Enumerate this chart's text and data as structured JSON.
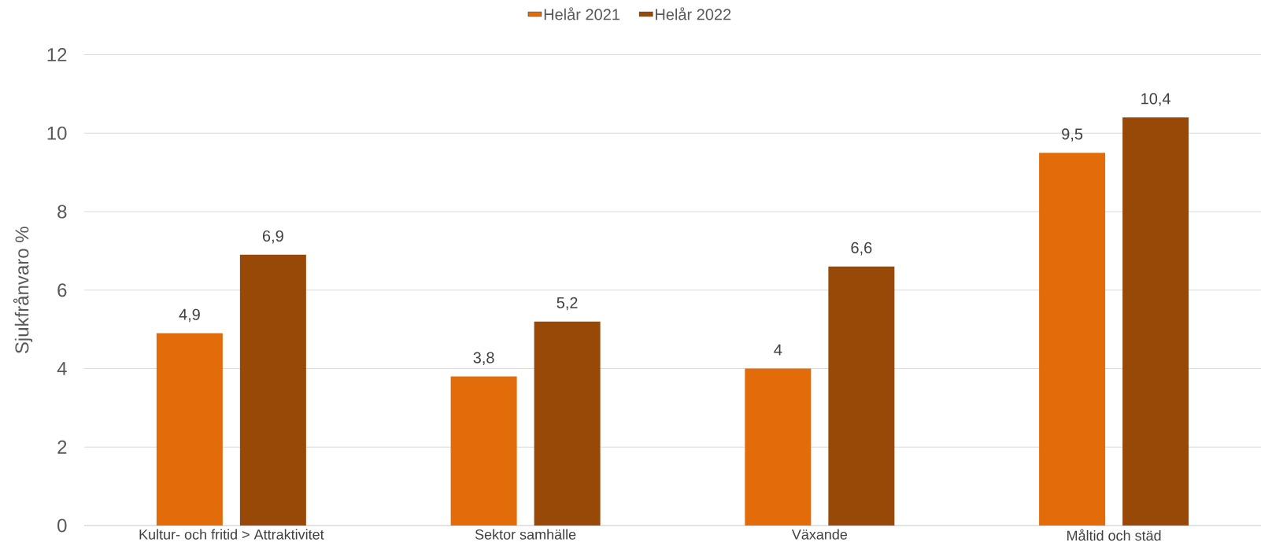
{
  "chart_data": {
    "type": "bar",
    "ylabel": "Sjukfrånvaro %",
    "categories": [
      "Kultur- och fritid > Attraktivitet",
      "Sektor samhälle",
      "Växande",
      "Måltid och städ"
    ],
    "series": [
      {
        "name": "Helår 2021",
        "color": "#e36c0a",
        "values": [
          4.9,
          3.8,
          4,
          9.5
        ],
        "value_labels": [
          "4,9",
          "3,8",
          "4",
          "9,5"
        ]
      },
      {
        "name": "Helår 2022",
        "color": "#984807",
        "values": [
          6.9,
          5.2,
          6.6,
          10.4
        ],
        "value_labels": [
          "6,9",
          "5,2",
          "6,6",
          "10,4"
        ]
      }
    ],
    "ylim": [
      0,
      12
    ],
    "yticks": [
      0,
      2,
      4,
      6,
      8,
      10,
      12
    ],
    "grid": "y",
    "legend": "top"
  }
}
